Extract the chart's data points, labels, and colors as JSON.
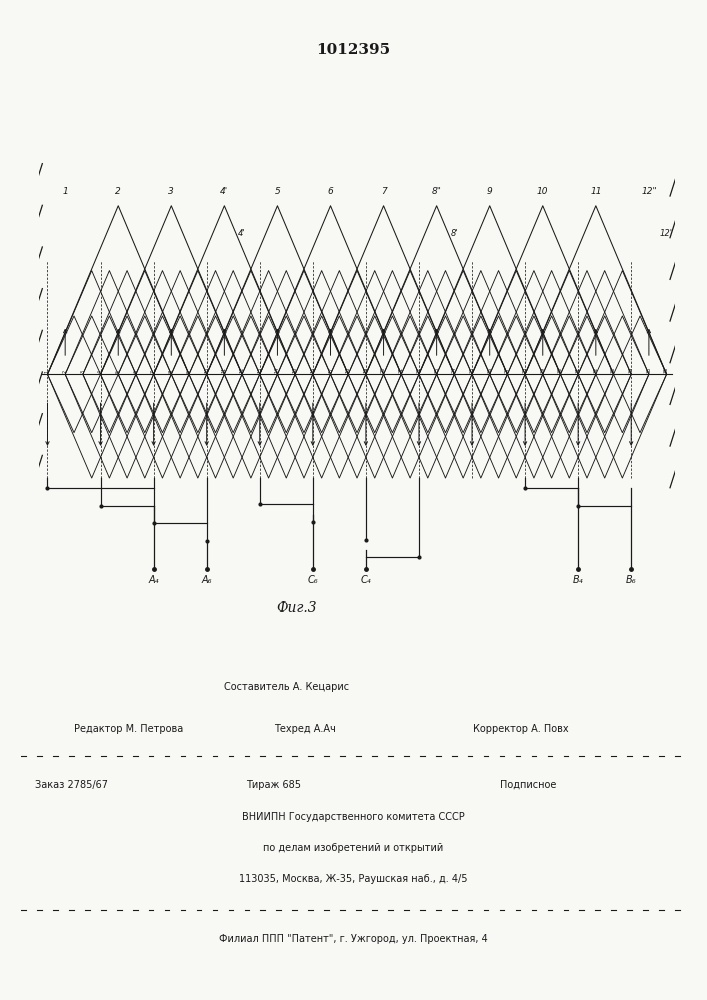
{
  "patent_number": "1012395",
  "figure_label": "Фиг.3",
  "bg_color": "#f8f8f5",
  "line_color": "#1a1a1a",
  "n_slots": 36,
  "top_labels": [
    "1",
    "2",
    "3",
    "4'",
    "5",
    "6",
    "7",
    "8\"",
    "9",
    "10",
    "11",
    "12\""
  ],
  "secondary_labels": [
    "4'",
    "8'",
    "12'"
  ],
  "terminal_labels_text": [
    "A₄",
    "A₆",
    "C₆",
    "C₄",
    "B₄",
    "B₆"
  ],
  "footer_sestavitel": "Составитель А. Кецарис",
  "footer_redaktor": "Редактор М. Петрова",
  "footer_tehred": "Техред А.Ач",
  "footer_korrektor": "Корректор А. Повх",
  "footer_zakaz": "Заказ 2785/67",
  "footer_tirazh": "Тираж 685",
  "footer_podpisnoe": "Подписное",
  "footer_vniipn": "ВНИИПН Государственного комитета СССР",
  "footer_po_delam": "по делам изобретений и открытий",
  "footer_address": "113035, Москва, Ж-35, Раушская наб., д. 4/5",
  "footer_filial": "Филиал ППП \"Патент\", г. Ужгород, ул. Проектная, 4"
}
